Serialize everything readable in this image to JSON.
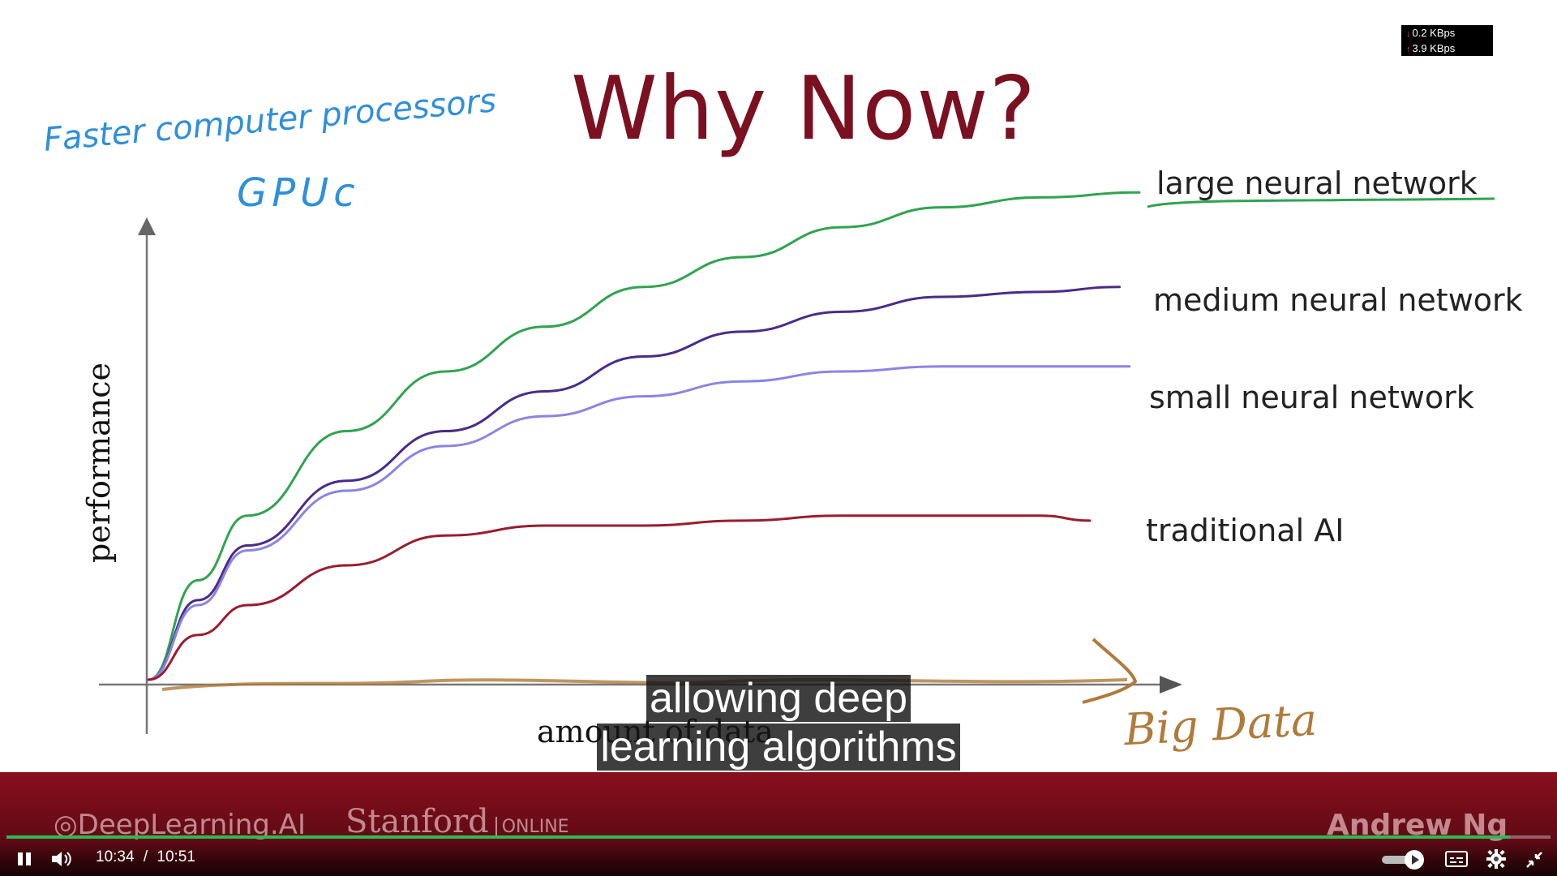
{
  "slide": {
    "title": "Why Now?",
    "annotation_line1": "Faster computer processors",
    "annotation_line2": "GPUc",
    "y_axis_label": "performance",
    "x_axis_label": "amount of data",
    "big_data_label": "Big Data"
  },
  "chart_data": {
    "type": "line",
    "title": "Why Now?",
    "xlabel": "amount of data",
    "ylabel": "performance",
    "grid": false,
    "series": [
      {
        "name": "large neural network",
        "color": "#2fa44f",
        "x": [
          0,
          5,
          10,
          20,
          30,
          40,
          50,
          60,
          70,
          80,
          90,
          100
        ],
        "y": [
          0,
          20,
          33,
          50,
          62,
          71,
          79,
          85,
          91,
          95,
          97,
          98
        ]
      },
      {
        "name": "medium neural network",
        "color": "#4b2a8a",
        "x": [
          0,
          5,
          10,
          20,
          30,
          40,
          50,
          60,
          70,
          80,
          90,
          98
        ],
        "y": [
          0,
          16,
          27,
          40,
          50,
          58,
          65,
          70,
          74,
          77,
          78,
          79
        ]
      },
      {
        "name": "small neural network",
        "color": "#8a84e6",
        "x": [
          0,
          5,
          10,
          20,
          30,
          40,
          50,
          60,
          70,
          80,
          90,
          99
        ],
        "y": [
          0,
          15,
          26,
          38,
          47,
          53,
          57,
          60,
          62,
          63,
          63,
          63
        ]
      },
      {
        "name": "traditional AI",
        "color": "#9a1c2f",
        "x": [
          0,
          5,
          10,
          20,
          30,
          40,
          50,
          60,
          70,
          80,
          90,
          95
        ],
        "y": [
          0,
          9,
          15,
          23,
          29,
          31,
          31,
          32,
          33,
          33,
          33,
          32
        ]
      }
    ],
    "xlim": [
      0,
      100
    ],
    "ylim": [
      0,
      100
    ]
  },
  "curve_labels": [
    "large neural network",
    "medium neural network",
    "small neural network",
    "traditional AI"
  ],
  "network_stats": {
    "download": "0.2 KBps",
    "upload": "3.9 KBps"
  },
  "captions": {
    "line1": "allowing deep",
    "line2": "learning algorithms"
  },
  "banner": {
    "logo_text": "DeepLearning.AI",
    "stanford": "Stanford",
    "online": "ONLINE",
    "presenter": "Andrew Ng"
  },
  "player": {
    "current_time": "10:34",
    "separator": "/",
    "duration": "10:51",
    "progress": 0.974,
    "accent_color": "#2bbb53",
    "icons": [
      "pause-icon",
      "volume-icon",
      "autoplay-toggle",
      "captions-icon",
      "settings-gear-icon",
      "exit-fullscreen-icon"
    ]
  }
}
